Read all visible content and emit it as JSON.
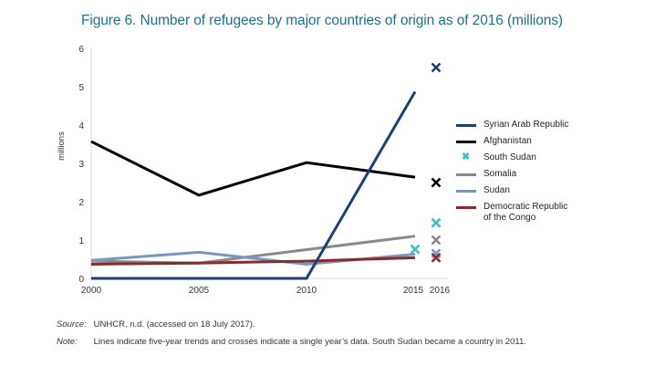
{
  "chart_data": {
    "type": "line",
    "title": "Figure 6. Number of refugees by major countries of origin as of 2016 (millions)",
    "xlabel": "",
    "ylabel": "millions",
    "ylim": [
      0,
      6
    ],
    "yticks": [
      "0",
      "1",
      "2",
      "3",
      "4",
      "5",
      "6"
    ],
    "x_line": [
      2000,
      2005,
      2010,
      2015
    ],
    "xticks": [
      "2000",
      "2005",
      "2010",
      "2015",
      "2016"
    ],
    "grid": false,
    "legend_position": "right",
    "series": [
      {
        "name": "Syrian Arab Republic",
        "color": "#1f3f73",
        "kind": "line",
        "values": [
          0,
          0,
          0,
          4.87
        ],
        "cross_2016": 5.5
      },
      {
        "name": "Afghanistan",
        "color": "#000000",
        "kind": "line",
        "values": [
          3.57,
          2.17,
          3.02,
          2.64
        ],
        "cross_2016": 2.5
      },
      {
        "name": "South Sudan",
        "color": "#3bbfc4",
        "kind": "cross",
        "values": [
          null,
          null,
          null,
          0.76
        ],
        "cross_2016": 1.45
      },
      {
        "name": "Somalia",
        "color": "#8a8a8a",
        "kind": "line",
        "values": [
          0.45,
          0.4,
          0.75,
          1.1
        ],
        "cross_2016": 1.0
      },
      {
        "name": "Sudan",
        "color": "#7a95c2",
        "kind": "line",
        "values": [
          0.47,
          0.68,
          0.37,
          0.63
        ],
        "cross_2016": 0.65
      },
      {
        "name": "Democratic Republic of the Congo",
        "color": "#8b2a2a",
        "kind": "line",
        "values": [
          0.37,
          0.4,
          0.45,
          0.54
        ],
        "cross_2016": 0.54
      }
    ]
  },
  "legend": [
    {
      "label": "Syrian Arab Republic"
    },
    {
      "label": "Afghanistan"
    },
    {
      "label": "South Sudan"
    },
    {
      "label": "Somalia"
    },
    {
      "label": "Sudan"
    },
    {
      "label": "Democratic Republic of the Congo"
    }
  ],
  "legend_drc_line1": "Democratic Republic",
  "legend_drc_line2": "of the Congo",
  "footer": {
    "source_key": "Source:",
    "source_text": "UNHCR, n.d. (accessed on 18 July 2017).",
    "note_key": "Note:",
    "note_text": "Lines indicate five-year trends and crosses indicate a single year’s data. South Sudan became a country in 2011."
  },
  "cross_glyph": "✖"
}
